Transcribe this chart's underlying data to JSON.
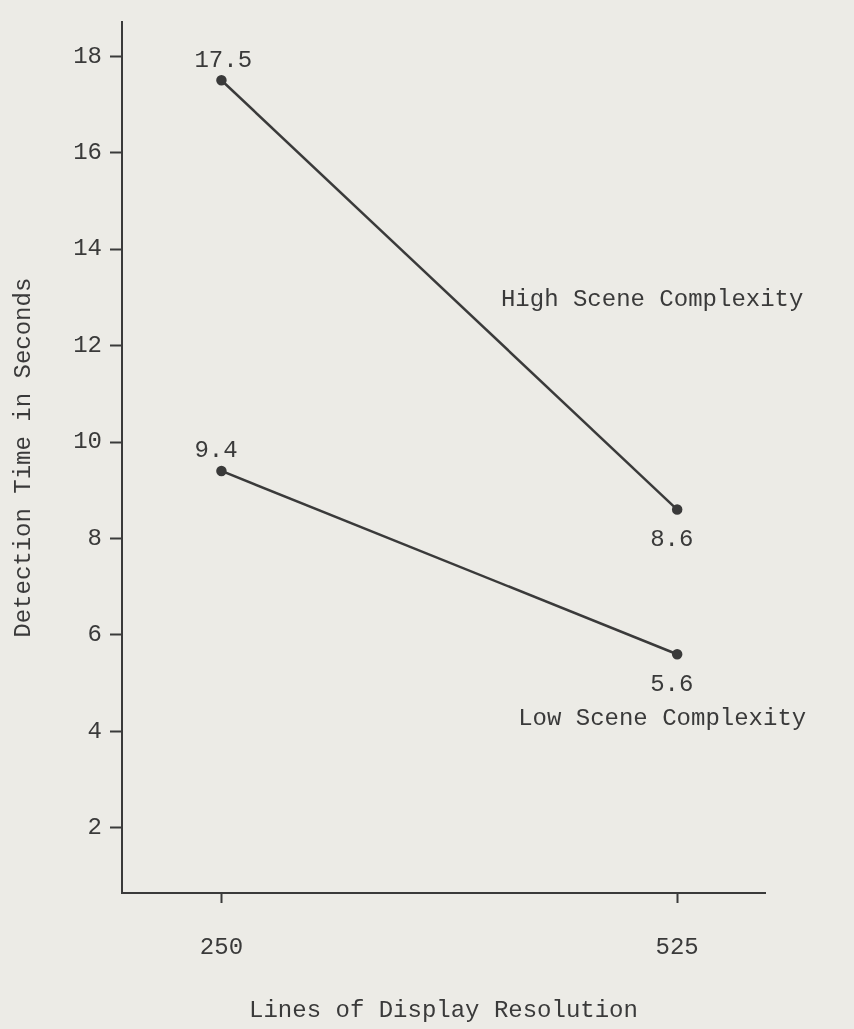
{
  "chart_data": {
    "type": "line",
    "xlabel": "Lines of Display Resolution",
    "ylabel": "Detection Time in Seconds",
    "x": [
      250,
      525
    ],
    "xlim": [
      190,
      578
    ],
    "xticks": [
      250,
      525
    ],
    "series": [
      {
        "name": "High Scene Complexity",
        "color": "#3a3a3a",
        "values": [
          17.5,
          8.6
        ]
      },
      {
        "name": "Low Scene Complexity",
        "color": "#3a3a3a",
        "values": [
          9.4,
          5.6
        ]
      }
    ],
    "ylim": [
      0.65,
      18.7
    ],
    "yticks": [
      2,
      4,
      6,
      8,
      10,
      12,
      14,
      16,
      18
    ],
    "grid": false,
    "legend": false,
    "marker": "circle",
    "line_style": "solid",
    "data_labels": true
  }
}
